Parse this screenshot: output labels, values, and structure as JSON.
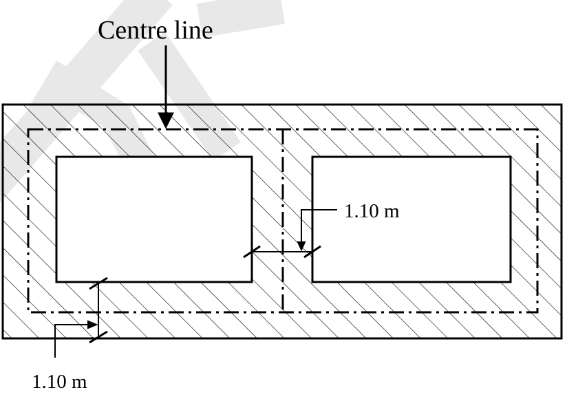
{
  "diagram": {
    "centre_line_label": "Centre line",
    "dimension_inner_label": "1.10 m",
    "dimension_outer_label": "1.10 m",
    "watermark": "SAMPLE"
  },
  "colors": {
    "line": "#000000",
    "watermark": "#d9d9d9",
    "background": "#ffffff"
  }
}
